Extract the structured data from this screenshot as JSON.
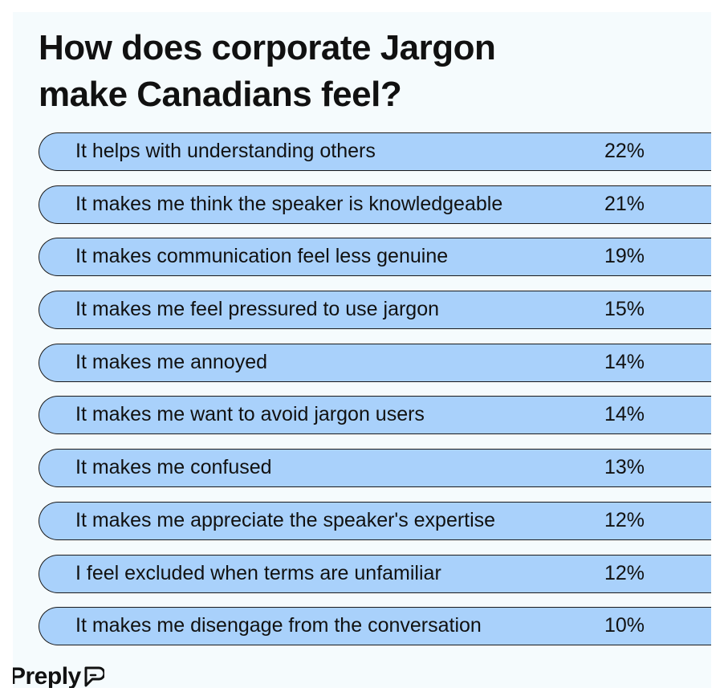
{
  "chart_data": {
    "type": "bar",
    "title": "How does corporate Jargon\nmake Canadians feel?",
    "categories": [
      "It helps with understanding others",
      "It makes me think the speaker is knowledgeable",
      "It makes communication feel less genuine",
      "It makes me feel pressured to use jargon",
      "It makes me annoyed",
      "It makes me want to avoid jargon users",
      "It makes me confused",
      "It makes me appreciate the speaker's expertise",
      "I feel excluded when terms are unfamiliar",
      "It makes me disengage from the conversation"
    ],
    "values": [
      22,
      21,
      19,
      15,
      14,
      14,
      13,
      12,
      12,
      10
    ],
    "value_labels": [
      "22%",
      "21%",
      "19%",
      "15%",
      "14%",
      "14%",
      "13%",
      "12%",
      "12%",
      "10%"
    ],
    "unit": "%",
    "colors": {
      "row_fill": "#a9d1fb",
      "row_border": "#1a1a1a",
      "background": "#f5fbfd"
    }
  },
  "brand": {
    "name": "Preply",
    "icon": "preply-logo-icon"
  }
}
